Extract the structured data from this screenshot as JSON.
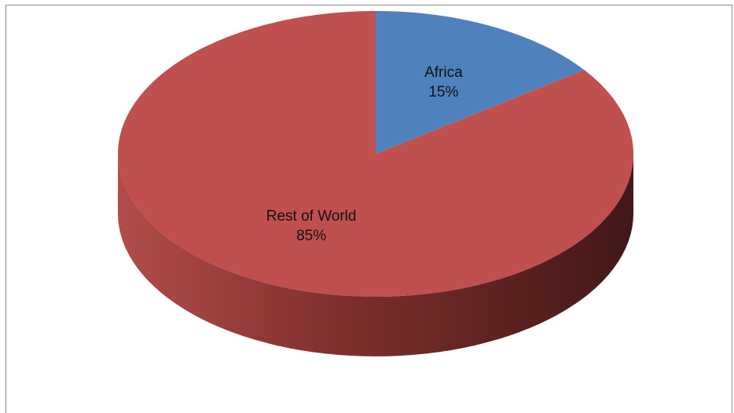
{
  "chart_data": {
    "type": "pie",
    "style": "3d",
    "slices": [
      {
        "label": "Africa",
        "value": 15,
        "value_label": "15%",
        "color": "#4f81bd"
      },
      {
        "label": "Rest of World",
        "value": 85,
        "value_label": "85%",
        "color": "#c0504d"
      }
    ],
    "side_colors": {
      "Africa": "#2e4d76",
      "Rest of World": "#7a2c2a"
    }
  }
}
